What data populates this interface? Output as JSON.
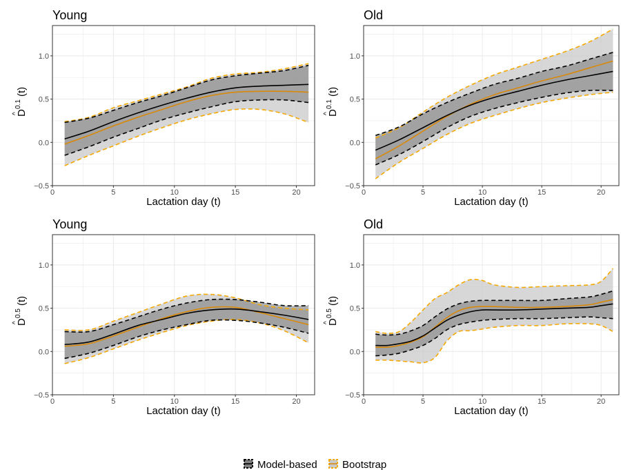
{
  "chart_data": [
    {
      "type": "line",
      "title": "Young",
      "xlabel": "Lactation day (t)",
      "ylabel_main": "D",
      "ylabel_sup": "0.1",
      "ylabel_arg": "(t)",
      "xlim": [
        0,
        21.5
      ],
      "ylim": [
        -0.5,
        1.35
      ],
      "xticks": [
        "0",
        "5",
        "10",
        "15",
        "20"
      ],
      "yticks": [
        "-0.5",
        "0.0",
        "0.5",
        "1.0"
      ],
      "x": [
        1,
        3,
        5,
        7,
        9,
        11,
        13,
        15,
        17,
        19,
        21
      ],
      "series": [
        {
          "name": "Model-based",
          "role": "estimate",
          "values": [
            0.04,
            0.13,
            0.24,
            0.34,
            0.43,
            0.51,
            0.58,
            0.63,
            0.65,
            0.66,
            0.67
          ]
        },
        {
          "name": "Model-based",
          "role": "lower",
          "values": [
            -0.15,
            -0.05,
            0.06,
            0.16,
            0.26,
            0.34,
            0.41,
            0.47,
            0.49,
            0.49,
            0.46
          ]
        },
        {
          "name": "Model-based",
          "role": "upper",
          "values": [
            0.23,
            0.28,
            0.37,
            0.46,
            0.54,
            0.63,
            0.72,
            0.77,
            0.8,
            0.83,
            0.89
          ]
        },
        {
          "name": "Bootstrap",
          "role": "estimate",
          "values": [
            -0.02,
            0.08,
            0.19,
            0.29,
            0.38,
            0.47,
            0.54,
            0.58,
            0.59,
            0.59,
            0.58
          ]
        },
        {
          "name": "Bootstrap",
          "role": "lower",
          "values": [
            -0.27,
            -0.15,
            -0.04,
            0.07,
            0.17,
            0.26,
            0.33,
            0.38,
            0.38,
            0.33,
            0.23
          ]
        },
        {
          "name": "Bootstrap",
          "role": "upper",
          "values": [
            0.24,
            0.29,
            0.4,
            0.48,
            0.56,
            0.64,
            0.74,
            0.79,
            0.81,
            0.85,
            0.91
          ]
        }
      ]
    },
    {
      "type": "line",
      "title": "Old",
      "xlabel": "Lactation day (t)",
      "ylabel_main": "D",
      "ylabel_sup": "0.1",
      "ylabel_arg": "(t)",
      "xlim": [
        0,
        21.5
      ],
      "ylim": [
        -0.5,
        1.35
      ],
      "xticks": [
        "0",
        "5",
        "10",
        "15",
        "20"
      ],
      "yticks": [
        "-0.5",
        "0.0",
        "0.5",
        "1.0"
      ],
      "x": [
        1,
        3,
        5,
        7,
        9,
        11,
        13,
        15,
        17,
        19,
        21
      ],
      "series": [
        {
          "name": "Model-based",
          "role": "estimate",
          "values": [
            -0.09,
            0.03,
            0.17,
            0.31,
            0.43,
            0.52,
            0.59,
            0.66,
            0.72,
            0.77,
            0.82
          ]
        },
        {
          "name": "Model-based",
          "role": "lower",
          "values": [
            -0.26,
            -0.14,
            0.01,
            0.17,
            0.3,
            0.39,
            0.46,
            0.52,
            0.57,
            0.6,
            0.6
          ]
        },
        {
          "name": "Model-based",
          "role": "upper",
          "values": [
            0.08,
            0.18,
            0.33,
            0.46,
            0.57,
            0.67,
            0.74,
            0.82,
            0.88,
            0.96,
            1.04
          ]
        },
        {
          "name": "Bootstrap",
          "role": "estimate",
          "values": [
            -0.19,
            -0.04,
            0.13,
            0.3,
            0.44,
            0.55,
            0.63,
            0.71,
            0.78,
            0.86,
            0.94
          ]
        },
        {
          "name": "Bootstrap",
          "role": "lower",
          "values": [
            -0.42,
            -0.23,
            -0.07,
            0.09,
            0.22,
            0.31,
            0.39,
            0.46,
            0.51,
            0.55,
            0.58
          ]
        },
        {
          "name": "Bootstrap",
          "role": "upper",
          "values": [
            0.05,
            0.17,
            0.35,
            0.52,
            0.66,
            0.78,
            0.87,
            0.96,
            1.05,
            1.16,
            1.31
          ]
        }
      ]
    },
    {
      "type": "line",
      "title": "Young",
      "xlabel": "Lactation day (t)",
      "ylabel_main": "D",
      "ylabel_sup": "0.5",
      "ylabel_arg": "(t)",
      "xlim": [
        0,
        21.5
      ],
      "ylim": [
        -0.5,
        1.35
      ],
      "xticks": [
        "0",
        "5",
        "10",
        "15",
        "20"
      ],
      "yticks": [
        "-0.5",
        "0.0",
        "0.5",
        "1.0"
      ],
      "x": [
        1,
        3,
        5,
        7,
        9,
        11,
        13,
        15,
        17,
        19,
        21
      ],
      "series": [
        {
          "name": "Model-based",
          "role": "estimate",
          "values": [
            0.08,
            0.11,
            0.2,
            0.3,
            0.37,
            0.44,
            0.48,
            0.49,
            0.46,
            0.42,
            0.37
          ]
        },
        {
          "name": "Model-based",
          "role": "lower",
          "values": [
            -0.08,
            -0.02,
            0.07,
            0.17,
            0.25,
            0.31,
            0.36,
            0.36,
            0.33,
            0.28,
            0.21
          ]
        },
        {
          "name": "Model-based",
          "role": "upper",
          "values": [
            0.23,
            0.23,
            0.31,
            0.4,
            0.49,
            0.56,
            0.6,
            0.6,
            0.57,
            0.53,
            0.53
          ]
        },
        {
          "name": "Bootstrap",
          "role": "estimate",
          "values": [
            0.06,
            0.09,
            0.18,
            0.28,
            0.38,
            0.46,
            0.51,
            0.51,
            0.45,
            0.38,
            0.31
          ]
        },
        {
          "name": "Bootstrap",
          "role": "lower",
          "values": [
            -0.14,
            -0.07,
            0.03,
            0.13,
            0.22,
            0.3,
            0.35,
            0.37,
            0.33,
            0.24,
            0.1
          ]
        },
        {
          "name": "Bootstrap",
          "role": "upper",
          "values": [
            0.25,
            0.25,
            0.35,
            0.45,
            0.55,
            0.64,
            0.66,
            0.62,
            0.54,
            0.5,
            0.48
          ]
        }
      ]
    },
    {
      "type": "line",
      "title": "Old",
      "xlabel": "Lactation day (t)",
      "ylabel_main": "D",
      "ylabel_sup": "0.5",
      "ylabel_arg": "(t)",
      "xlim": [
        0,
        21.5
      ],
      "ylim": [
        -0.5,
        1.35
      ],
      "xticks": [
        "0",
        "5",
        "10",
        "15",
        "20"
      ],
      "yticks": [
        "-0.5",
        "0.0",
        "0.5",
        "1.0"
      ],
      "x": [
        1,
        2,
        3,
        4,
        5,
        6,
        7,
        8,
        9,
        10,
        11,
        13,
        15,
        17,
        19,
        20,
        21
      ],
      "series": [
        {
          "name": "Model-based",
          "role": "estimate",
          "values": [
            0.07,
            0.07,
            0.09,
            0.12,
            0.18,
            0.27,
            0.36,
            0.42,
            0.46,
            0.48,
            0.48,
            0.48,
            0.49,
            0.5,
            0.51,
            0.53,
            0.55
          ]
        },
        {
          "name": "Model-based",
          "role": "lower",
          "values": [
            -0.05,
            -0.04,
            -0.02,
            0.02,
            0.07,
            0.15,
            0.25,
            0.31,
            0.34,
            0.36,
            0.37,
            0.38,
            0.38,
            0.39,
            0.4,
            0.39,
            0.38
          ]
        },
        {
          "name": "Model-based",
          "role": "upper",
          "values": [
            0.2,
            0.19,
            0.2,
            0.24,
            0.3,
            0.4,
            0.49,
            0.55,
            0.58,
            0.59,
            0.59,
            0.59,
            0.59,
            0.61,
            0.63,
            0.66,
            0.7
          ]
        },
        {
          "name": "Bootstrap",
          "role": "estimate",
          "values": [
            0.05,
            0.05,
            0.07,
            0.11,
            0.17,
            0.28,
            0.39,
            0.47,
            0.51,
            0.52,
            0.52,
            0.51,
            0.51,
            0.52,
            0.54,
            0.57,
            0.6
          ]
        },
        {
          "name": "Bootstrap",
          "role": "lower",
          "values": [
            -0.1,
            -0.1,
            -0.11,
            -0.12,
            -0.13,
            -0.07,
            0.12,
            0.23,
            0.24,
            0.26,
            0.28,
            0.3,
            0.3,
            0.32,
            0.32,
            0.3,
            0.23
          ]
        },
        {
          "name": "Bootstrap",
          "role": "upper",
          "values": [
            0.23,
            0.21,
            0.23,
            0.34,
            0.48,
            0.61,
            0.68,
            0.77,
            0.83,
            0.82,
            0.77,
            0.74,
            0.75,
            0.76,
            0.77,
            0.81,
            0.96
          ]
        }
      ]
    }
  ],
  "legend": {
    "placement": "bottom",
    "items": [
      {
        "label": "Model-based",
        "line_color": "#000000",
        "fill": "#808080"
      },
      {
        "label": "Bootstrap",
        "line_color": "#E69F00",
        "fill": "#BFBFBF"
      }
    ]
  },
  "colors": {
    "model_line": "#000000",
    "boot_line": "#D9890A",
    "boot_band_line": "#F5A800",
    "model_band": "#7F7F7F",
    "boot_band": "#C9C9C9",
    "grid": "#EBEBEB",
    "axis": "#333333"
  }
}
